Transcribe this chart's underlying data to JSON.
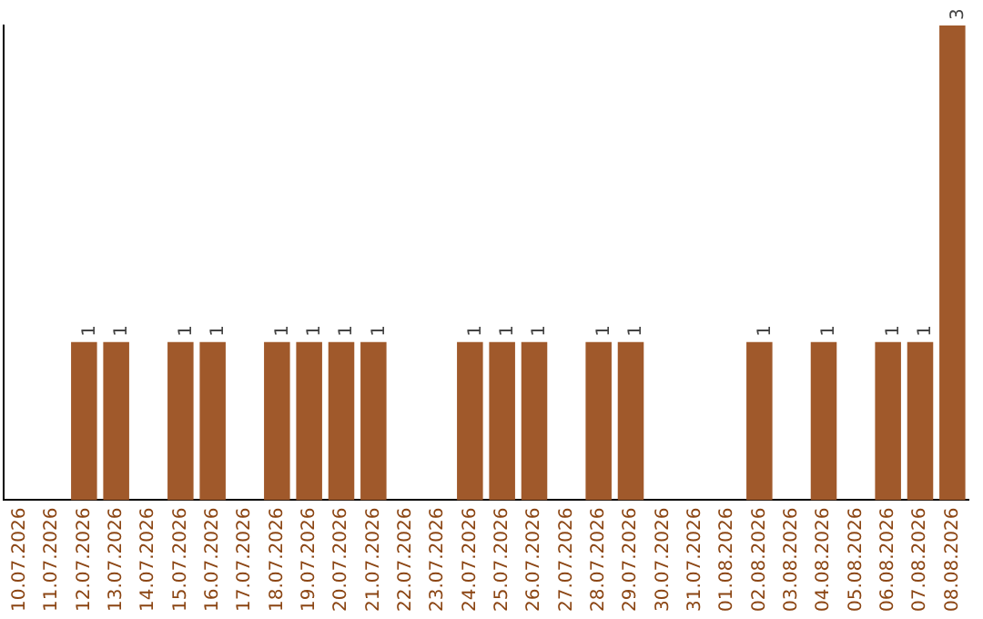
{
  "chart_data": {
    "type": "bar",
    "categories": [
      "10.07.2026",
      "11.07.2026",
      "12.07.2026",
      "13.07.2026",
      "14.07.2026",
      "15.07.2026",
      "16.07.2026",
      "17.07.2026",
      "18.07.2026",
      "19.07.2026",
      "20.07.2026",
      "21.07.2026",
      "22.07.2026",
      "23.07.2026",
      "24.07.2026",
      "25.07.2026",
      "26.07.2026",
      "27.07.2026",
      "28.07.2026",
      "29.07.2026",
      "30.07.2026",
      "31.07.2026",
      "01.08.2026",
      "02.08.2026",
      "03.08.2026",
      "04.08.2026",
      "05.08.2026",
      "06.08.2026",
      "07.08.2026",
      "08.08.2026"
    ],
    "values": [
      0,
      0,
      1,
      1,
      0,
      1,
      1,
      0,
      1,
      1,
      1,
      1,
      0,
      0,
      1,
      1,
      1,
      0,
      1,
      1,
      0,
      0,
      0,
      1,
      0,
      1,
      0,
      1,
      1,
      3
    ],
    "value_labels": [
      null,
      null,
      "1",
      "1",
      null,
      "1",
      "1",
      null,
      "1",
      "1",
      "1",
      "1",
      null,
      null,
      "1",
      "1",
      "1",
      null,
      "1",
      "1",
      null,
      null,
      null,
      "1",
      null,
      "1",
      null,
      "1",
      "1",
      "3"
    ],
    "color": "#a0592b",
    "ylim": [
      0,
      3
    ],
    "tick_labels": "x",
    "grid": false,
    "legend": false
  }
}
